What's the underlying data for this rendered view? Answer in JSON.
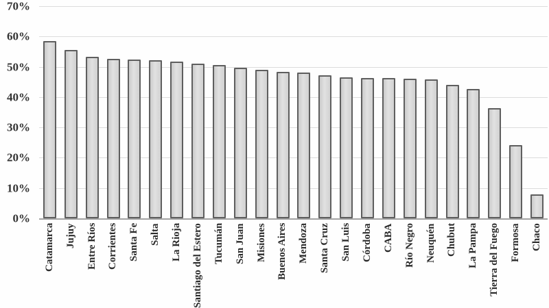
{
  "chart_data": {
    "type": "bar",
    "title": "",
    "xlabel": "",
    "ylabel": "",
    "categories": [
      "Catamarca",
      "Jujuy",
      "Entre Ríos",
      "Corrientes",
      "Santa Fe",
      "Salta",
      "La Rioja",
      "Santiago del Estero",
      "Tucumán",
      "San Juan",
      "Misiones",
      "Buenos Aires",
      "Mendoza",
      "Santa Cruz",
      "San Luis",
      "Córdoba",
      "CABA",
      "Río Negro",
      "Neuquén",
      "Chubut",
      "La Pampa",
      "Tierra del Fuego",
      "Formosa",
      "Chaco"
    ],
    "values": [
      58.5,
      55.5,
      53.4,
      52.7,
      52.3,
      52.1,
      51.8,
      51.0,
      50.5,
      49.7,
      48.9,
      48.4,
      48.1,
      47.3,
      46.6,
      46.4,
      46.3,
      46.1,
      45.9,
      44.0,
      42.7,
      36.3,
      24.2,
      8.0
    ],
    "unit": "%",
    "ylim": [
      0,
      70
    ],
    "y_ticks": [
      "70%",
      "60%",
      "50%",
      "40%",
      "30%",
      "20%",
      "10%",
      "0%"
    ],
    "grid": true,
    "legend": false,
    "x_labels_rotated_degrees": 90,
    "colors": {
      "bar_fill": "#d8d8d8",
      "bar_border": "#5e5e5e",
      "gridline": "#dcdcdc",
      "axis_line": "#a3a3a3",
      "tick_text": "#343434",
      "category_text": "#2b2b2b",
      "background": "#fefefe"
    }
  }
}
